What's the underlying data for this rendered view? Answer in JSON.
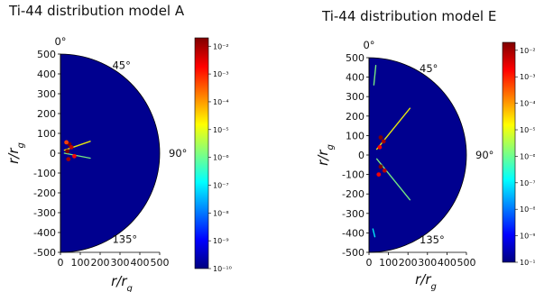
{
  "chart_data": [
    {
      "type": "heatmap",
      "projection": "polar-half-disk",
      "title": "Ti-44 distribution model A",
      "xlabel": "r/r_g",
      "ylabel": "r/r_g",
      "xlabel_parts": {
        "base": "r/r",
        "sub": "g"
      },
      "ylabel_parts": {
        "base": "r/r",
        "sub": "g"
      },
      "xlim": [
        0,
        500
      ],
      "ylim": [
        -500,
        500
      ],
      "x_ticks": [
        0,
        100,
        200,
        300,
        400,
        500
      ],
      "y_ticks": [
        500,
        400,
        300,
        200,
        100,
        0,
        -100,
        -200,
        -300,
        -400,
        -500
      ],
      "angle_labels": [
        {
          "angle": 0,
          "label": "0°"
        },
        {
          "angle": 45,
          "label": "45°"
        },
        {
          "angle": 90,
          "label": "90°"
        },
        {
          "angle": 135,
          "label": "135°"
        }
      ],
      "background_color": "#00008f",
      "colorbar": {
        "scale": "log",
        "ticks": [
          "10⁻²",
          "10⁻³",
          "10⁻⁴",
          "10⁻⁵",
          "10⁻⁶",
          "10⁻⁷",
          "10⁻⁸",
          "10⁻⁹",
          "10⁻¹⁰"
        ],
        "colormap": "jet"
      },
      "features": [
        {
          "kind": "clump",
          "x": 45,
          "y": 45,
          "value": 0.01
        },
        {
          "kind": "clump",
          "x": 55,
          "y": 30,
          "value": 0.003
        },
        {
          "kind": "clump",
          "x": 35,
          "y": 10,
          "value": 0.01
        },
        {
          "kind": "clump",
          "x": 40,
          "y": -30,
          "value": 0.005
        },
        {
          "kind": "clump",
          "x": 70,
          "y": -15,
          "value": 0.001
        },
        {
          "kind": "clump",
          "x": 30,
          "y": 55,
          "value": 0.0003
        },
        {
          "kind": "filament",
          "x0": 20,
          "y0": 15,
          "x1": 150,
          "y1": 60,
          "value": 1e-05
        },
        {
          "kind": "filament",
          "x0": 20,
          "y0": 0,
          "x1": 150,
          "y1": -25,
          "value": 1e-06
        }
      ]
    },
    {
      "type": "heatmap",
      "projection": "polar-half-disk",
      "title": "Ti-44 distribution model E",
      "xlabel": "r/r_g",
      "ylabel": "r/r_g",
      "xlabel_parts": {
        "base": "r/r",
        "sub": "g"
      },
      "ylabel_parts": {
        "base": "r/r",
        "sub": "g"
      },
      "xlim": [
        0,
        500
      ],
      "ylim": [
        -500,
        500
      ],
      "x_ticks": [
        0,
        100,
        200,
        300,
        400,
        500
      ],
      "y_ticks": [
        500,
        400,
        300,
        200,
        100,
        0,
        -100,
        -200,
        -300,
        -400,
        -500
      ],
      "angle_labels": [
        {
          "angle": 0,
          "label": "0°"
        },
        {
          "angle": 45,
          "label": "45°"
        },
        {
          "angle": 90,
          "label": "90°"
        },
        {
          "angle": 135,
          "label": "135°"
        }
      ],
      "background_color": "#00008f",
      "colorbar": {
        "scale": "log",
        "ticks": [
          "10⁻²",
          "10⁻³",
          "10⁻⁴",
          "10⁻⁵",
          "10⁻⁶",
          "10⁻⁷",
          "10⁻⁸",
          "10⁻⁹",
          "10⁻¹⁰"
        ],
        "colormap": "jet"
      },
      "features": [
        {
          "kind": "clump",
          "x": 60,
          "y": 90,
          "value": 0.01
        },
        {
          "kind": "clump",
          "x": 75,
          "y": 70,
          "value": 0.005
        },
        {
          "kind": "clump",
          "x": 55,
          "y": 40,
          "value": 0.001
        },
        {
          "kind": "clump",
          "x": 60,
          "y": -60,
          "value": 0.01
        },
        {
          "kind": "clump",
          "x": 80,
          "y": -80,
          "value": 0.003
        },
        {
          "kind": "clump",
          "x": 50,
          "y": -100,
          "value": 0.001
        },
        {
          "kind": "filament",
          "x0": 40,
          "y0": 30,
          "x1": 210,
          "y1": 240,
          "value": 1e-05
        },
        {
          "kind": "filament",
          "x0": 40,
          "y0": -20,
          "x1": 210,
          "y1": -230,
          "value": 1e-06
        },
        {
          "kind": "filament",
          "x0": 25,
          "y0": 360,
          "x1": 35,
          "y1": 460,
          "value": 1e-06
        },
        {
          "kind": "filament",
          "x0": 20,
          "y0": -380,
          "x1": 30,
          "y1": -420,
          "value": 1e-07
        }
      ]
    }
  ]
}
